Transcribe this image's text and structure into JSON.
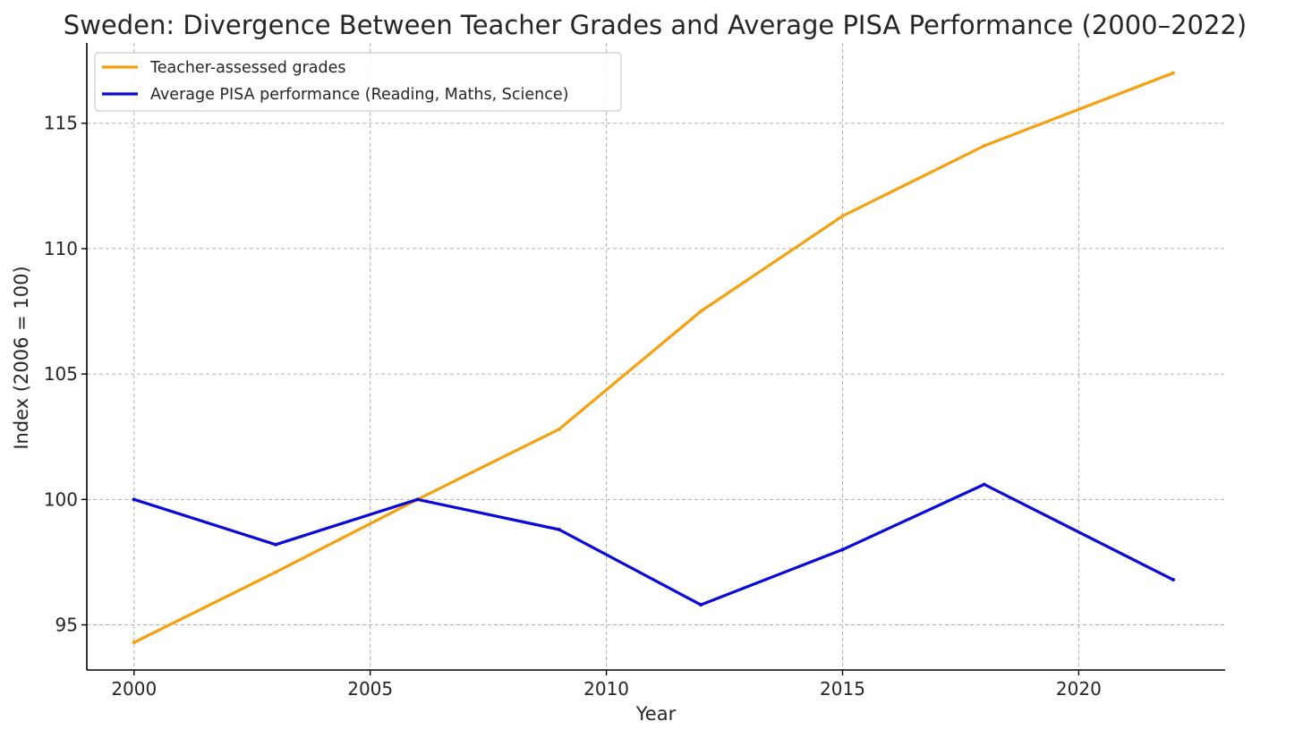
{
  "chart_data": {
    "type": "line",
    "title": "Sweden: Divergence Between Teacher Grades and Average PISA Performance (2000–2022)",
    "xlabel": "Year",
    "ylabel": "Index (2006 = 100)",
    "xlim": [
      1999,
      2023.1
    ],
    "ylim": [
      93.2,
      118.2
    ],
    "x_ticks": [
      2000,
      2005,
      2010,
      2015,
      2020
    ],
    "y_ticks": [
      95,
      100,
      105,
      110,
      115
    ],
    "grid": true,
    "legend_position": "top-left",
    "series": [
      {
        "name": "Teacher-assessed grades",
        "color": "#f5a00f",
        "x": [
          2000,
          2003,
          2006,
          2009,
          2012,
          2015,
          2018,
          2022
        ],
        "y": [
          94.3,
          97.1,
          100.0,
          102.8,
          107.5,
          111.3,
          114.1,
          117.0
        ]
      },
      {
        "name": "Average PISA performance (Reading, Maths, Science)",
        "color": "#0a0ad8",
        "x": [
          2000,
          2003,
          2006,
          2009,
          2012,
          2015,
          2018,
          2022
        ],
        "y": [
          100.0,
          98.2,
          100.0,
          98.8,
          95.8,
          98.0,
          100.6,
          96.8
        ]
      }
    ]
  }
}
